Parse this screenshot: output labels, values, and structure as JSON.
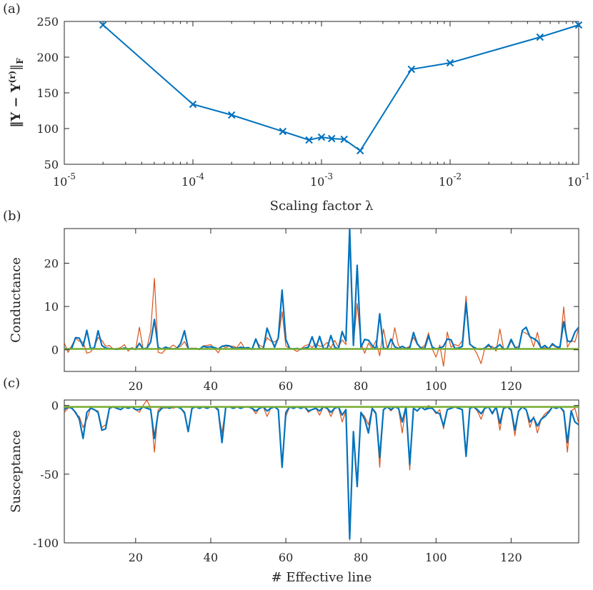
{
  "chart_data": [
    {
      "type": "line",
      "panel_label": "(a)",
      "xscale": "log",
      "xlim": [
        1e-05,
        0.1
      ],
      "ylim": [
        50,
        250
      ],
      "xticks": [
        1e-05,
        0.0001,
        0.001,
        0.01,
        0.1
      ],
      "xtick_bases": [
        "10",
        "10",
        "10",
        "10",
        "10"
      ],
      "xtick_exps": [
        "-5",
        "-4",
        "-3",
        "-2",
        "-1"
      ],
      "yticks": [
        50,
        100,
        150,
        200,
        250
      ],
      "ytick_labels": [
        "50",
        "100",
        "150",
        "200",
        "250"
      ],
      "xlabel": "Scaling factor λ",
      "ylabel": "‖Y − Y(r)‖F",
      "ylabel_parts": {
        "base": "‖Y − Y",
        "sup": "(r)",
        "end": "‖",
        "sub": "F"
      },
      "color": "#0072BD",
      "marker": "x",
      "x": [
        2e-05,
        0.0001,
        0.0002,
        0.0005,
        0.0008,
        0.001,
        0.0012,
        0.0015,
        0.002,
        0.005,
        0.01,
        0.05,
        0.1
      ],
      "y": [
        245,
        134,
        119,
        96,
        84,
        88,
        86,
        85,
        69,
        183,
        192,
        228,
        245
      ]
    },
    {
      "type": "line",
      "panel_label": "(b)",
      "xlim": [
        1,
        138
      ],
      "ylim": [
        -5,
        28
      ],
      "xticks": [
        20,
        40,
        60,
        80,
        100,
        120
      ],
      "xtick_labels": [
        "20",
        "40",
        "60",
        "80",
        "100",
        "120"
      ],
      "yticks": [
        0,
        10,
        20
      ],
      "ytick_labels": [
        "0",
        "10",
        "20"
      ],
      "xlabel": "",
      "ylabel": "Conductance",
      "series": [
        {
          "color": "#D95319",
          "width": 1.2,
          "values": [
            1.6,
            -0.6,
            1.0,
            2.6,
            2.0,
            1.8,
            -0.8,
            -0.5,
            0.7,
            2.8,
            2.2,
            0.8,
            1.0,
            0.2,
            0.3,
            0.5,
            1.2,
            -0.3,
            0.5,
            0.1,
            5.2,
            0.1,
            0.4,
            4.3,
            16.5,
            -0.6,
            -0.8,
            0.1,
            0.4,
            1.1,
            0.5,
            0.8,
            1.9,
            0.2,
            0.4,
            0.2,
            0.1,
            0.9,
            1.0,
            1.2,
            0.3,
            -0.7,
            0.9,
            0.5,
            0.9,
            0.8,
            0.5,
            1.8,
            0.4,
            0.2,
            0.1,
            2.2,
            1.0,
            0.6,
            2.8,
            2.0,
            1.8,
            2.5,
            8.8,
            0.9,
            0.3,
            0.1,
            -0.4,
            0.2,
            0.9,
            1.2,
            0.5,
            1.4,
            0.8,
            0.9,
            1.7,
            0.4,
            2.2,
            0.6,
            2.3,
            1.2,
            25.0,
            1.3,
            10.7,
            1.5,
            -0.8,
            1.5,
            0.4,
            2.1,
            -1.4,
            4.8,
            0.4,
            0.1,
            5.1,
            1.0,
            0.2,
            0.4,
            0.8,
            2.9,
            1.2,
            0.5,
            1.0,
            3.9,
            0.2,
            -1.7,
            1.1,
            -3.8,
            4.1,
            0.6,
            1.2,
            0.9,
            2.1,
            12.4,
            1.3,
            0.4,
            -1.1,
            -3.2,
            0.4,
            0.8,
            0.8,
            -0.3,
            4.8,
            0.2,
            0.1,
            2.0,
            0.5,
            0.8,
            4.2,
            3.8,
            3.2,
            0.7,
            4.0,
            0.3,
            0.5,
            0.3,
            1.1,
            0.6,
            0.3,
            9.9,
            0.6,
            2.2,
            1.8,
            5.0
          ]
        },
        {
          "color": "#0072BD",
          "width": 2.2,
          "values": [
            0.3,
            0.2,
            0.4,
            2.8,
            2.7,
            0.8,
            4.5,
            0.3,
            0.4,
            4.4,
            1.0,
            0.4,
            0.3,
            0.2,
            0.1,
            0.2,
            0.4,
            0.2,
            0.3,
            0.1,
            1.5,
            0.2,
            0.4,
            1.8,
            7.0,
            0.5,
            0.2,
            0.6,
            0.3,
            0.2,
            0.3,
            1.5,
            4.4,
            0.3,
            0.2,
            0.3,
            0.1,
            0.8,
            0.6,
            0.7,
            0.5,
            0.2,
            0.8,
            1.0,
            0.9,
            0.4,
            0.3,
            0.6,
            0.4,
            0.5,
            0.1,
            2.5,
            0.3,
            0.2,
            5.0,
            2.7,
            0.6,
            2.8,
            13.8,
            2.4,
            0.3,
            0.2,
            0.3,
            0.1,
            0.4,
            0.6,
            3.0,
            0.4,
            3.1,
            0.3,
            0.3,
            3.3,
            0.6,
            0.2,
            4.2,
            2.0,
            28.0,
            1.0,
            19.5,
            0.6,
            2.4,
            2.2,
            1.0,
            0.2,
            8.3,
            0.4,
            0.2,
            2.5,
            0.7,
            0.3,
            0.8,
            0.3,
            0.4,
            4.0,
            1.4,
            0.3,
            0.4,
            3.2,
            0.6,
            0.2,
            0.4,
            0.8,
            2.5,
            2.3,
            0.3,
            0.4,
            0.8,
            10.9,
            1.3,
            0.6,
            0.2,
            0.1,
            0.4,
            1.2,
            0.2,
            0.5,
            1.2,
            0.1,
            0.3,
            2.4,
            0.6,
            0.2,
            4.5,
            5.2,
            3.0,
            2.6,
            2.0,
            0.4,
            1.0,
            0.2,
            1.4,
            0.7,
            0.6,
            6.5,
            2.0,
            1.9,
            4.1,
            5.2
          ]
        },
        {
          "color": "#77AC30",
          "width": 2.5,
          "values": [
            0.2,
            0.2,
            0.2,
            0.2,
            0.2,
            0.2,
            0.2,
            0.2,
            0.2,
            0.2,
            0.2,
            0.2,
            0.2,
            0.2,
            0.2,
            0.2,
            0.2,
            0.2,
            0.2,
            0.2,
            0.2,
            0.2,
            0.2,
            0.2,
            0.2,
            0.2,
            0.2,
            0.2,
            0.2,
            0.2,
            0.2,
            0.2,
            0.2,
            0.2,
            0.2,
            0.2,
            0.2,
            0.2,
            0.2,
            0.2,
            0.2,
            0.2,
            0.2,
            0.2,
            0.2,
            0.2,
            0.2,
            0.2,
            0.2,
            0.2,
            0.2,
            0.2,
            0.2,
            0.2,
            0.2,
            0.2,
            0.2,
            0.2,
            0.2,
            0.2,
            0.2,
            0.2,
            0.2,
            0.2,
            0.2,
            0.2,
            0.2,
            0.2,
            0.2,
            0.2,
            0.2,
            0.2,
            0.2,
            0.2,
            0.2,
            0.2,
            0.2,
            0.2,
            0.2,
            0.2,
            0.2,
            0.2,
            0.2,
            0.2,
            0.2,
            0.2,
            0.2,
            0.2,
            0.2,
            0.2,
            0.2,
            0.2,
            0.2,
            0.2,
            0.2,
            0.2,
            0.2,
            0.2,
            0.2,
            0.2,
            0.2,
            0.2,
            0.2,
            0.2,
            0.2,
            0.2,
            0.2,
            0.2,
            0.2,
            0.2,
            0.2,
            0.2,
            0.2,
            0.2,
            0.2,
            0.2,
            0.2,
            0.2,
            0.2,
            0.2,
            0.2,
            0.2,
            0.2,
            0.2,
            0.2,
            0.2,
            0.2,
            0.2,
            0.2,
            0.2,
            0.2,
            0.2,
            0.2,
            0.2,
            0.2,
            0.2,
            0.2,
            0.2
          ]
        }
      ]
    },
    {
      "type": "line",
      "panel_label": "(c)",
      "xlim": [
        1,
        138
      ],
      "ylim": [
        -100,
        4
      ],
      "xticks": [
        20,
        40,
        60,
        80,
        100,
        120
      ],
      "xtick_labels": [
        "20",
        "40",
        "60",
        "80",
        "100",
        "120"
      ],
      "yticks": [
        -100,
        -50,
        0
      ],
      "ytick_labels": [
        "-100",
        "-50",
        "0"
      ],
      "xlabel": "# Effective line",
      "ylabel": "Susceptance",
      "series": [
        {
          "color": "#D95319",
          "width": 1.2,
          "values": [
            -5,
            -2,
            -1,
            -6,
            -8,
            -16,
            -10,
            -2,
            -3,
            -4,
            -16,
            -14,
            -2,
            -1,
            -2,
            -3,
            -1,
            -2,
            -1,
            -3,
            -5,
            0,
            4,
            -2,
            -34,
            -3,
            -1,
            -2,
            -1,
            -2,
            -1,
            -2,
            -6,
            -18,
            -2,
            -1,
            -2,
            -1,
            -2,
            -1,
            -1,
            -4,
            -20,
            -1,
            -1,
            -2,
            -1,
            -2,
            -1,
            -1,
            -2,
            -6,
            -2,
            -1,
            -8,
            -2,
            -1,
            -3,
            -42,
            -8,
            -1,
            -2,
            -1,
            -2,
            -1,
            -5,
            -3,
            -2,
            -7,
            -1,
            -2,
            -8,
            -2,
            -1,
            -12,
            -4,
            -98,
            -20,
            -55,
            -5,
            -8,
            -14,
            -2,
            -5,
            -45,
            -3,
            -1,
            -4,
            -1,
            -2,
            -20,
            -1,
            -47,
            -2,
            -4,
            -1,
            -3,
            0,
            -2,
            -6,
            -3,
            -17,
            -3,
            -2,
            -1,
            -2,
            -3,
            -33,
            -2,
            -1,
            -4,
            -10,
            -2,
            -1,
            -5,
            -1,
            -18,
            -2,
            -1,
            -4,
            -22,
            -4,
            -1,
            -3,
            -16,
            -8,
            -20,
            -10,
            -6,
            -4,
            -1,
            -2,
            -1,
            -5,
            -34,
            -4,
            -2,
            -13
          ]
        },
        {
          "color": "#0072BD",
          "width": 2.2,
          "values": [
            -3,
            -1,
            -2,
            -5,
            -10,
            -24,
            -5,
            -2,
            -3,
            -5,
            -18,
            -17,
            -2,
            -1,
            -2,
            -3,
            -1,
            -2,
            -1,
            -3,
            -3,
            -1,
            -2,
            -3,
            -24,
            -5,
            -2,
            -1,
            -2,
            -1,
            -1,
            -2,
            -5,
            -19,
            -2,
            -1,
            -2,
            -1,
            -2,
            -1,
            -1,
            -3,
            -27,
            -1,
            -1,
            -2,
            -1,
            -2,
            -1,
            -1,
            -2,
            -4,
            -2,
            -1,
            -4,
            -2,
            -1,
            -3,
            -45,
            -5,
            -1,
            -2,
            -1,
            -2,
            -1,
            -4,
            -3,
            -2,
            -4,
            -1,
            -2,
            -5,
            -2,
            -1,
            -7,
            -3,
            -97,
            -19,
            -59,
            -5,
            -10,
            -20,
            -2,
            -6,
            -38,
            -3,
            -1,
            -3,
            -1,
            -2,
            -12,
            -1,
            -43,
            -2,
            -4,
            -1,
            -3,
            -2,
            -2,
            -5,
            -6,
            -15,
            -3,
            -2,
            -1,
            -2,
            -3,
            -37,
            -2,
            -1,
            -3,
            -6,
            -2,
            -1,
            -6,
            -1,
            -13,
            -2,
            -1,
            -3,
            -18,
            -4,
            -1,
            -3,
            -12,
            -9,
            -15,
            -10,
            -8,
            -5,
            -1,
            -2,
            -1,
            -4,
            -27,
            -4,
            -12,
            -14
          ]
        },
        {
          "color": "#77AC30",
          "width": 2.5,
          "values": [
            -1,
            -1,
            -1,
            -1,
            -1,
            -1,
            -1,
            -1,
            -1,
            -1,
            -1,
            -1,
            -1,
            -1,
            -1,
            -1,
            -1,
            -1,
            -1,
            -1,
            -1,
            -1,
            -1,
            -1,
            -1,
            -1,
            -1,
            -1,
            -1,
            -1,
            -1,
            -1,
            -1,
            -1,
            -1,
            -1,
            -1,
            -1,
            -1,
            -1,
            -1,
            -1,
            -1,
            -1,
            -1,
            -1,
            -1,
            -1,
            -1,
            -1,
            -1,
            -1,
            -1,
            -1,
            -1,
            -1,
            -1,
            -1,
            -1,
            -1,
            -1,
            -1,
            -1,
            -1,
            -1,
            -1,
            -1,
            -1,
            -1,
            -1,
            -1,
            -1,
            -1,
            -1,
            -1,
            -1,
            -1,
            -1,
            -1,
            -1,
            -1,
            -1,
            -1,
            -1,
            -1,
            -1,
            -1,
            -1,
            -1,
            -1,
            -1,
            -1,
            -1,
            -1,
            -1,
            -1,
            -1,
            -1,
            -1,
            -1,
            -1,
            -1,
            -1,
            -1,
            -1,
            -1,
            -1,
            -1,
            -1,
            -1,
            -1,
            -1,
            -1,
            -1,
            -1,
            -1,
            -1,
            -1,
            -1,
            -1,
            -1,
            -1,
            -1,
            -1,
            -1,
            -1,
            -1,
            -1,
            -1,
            -1,
            -1,
            -1,
            -1,
            -1,
            -1,
            -1,
            -1,
            -1
          ]
        }
      ]
    }
  ]
}
